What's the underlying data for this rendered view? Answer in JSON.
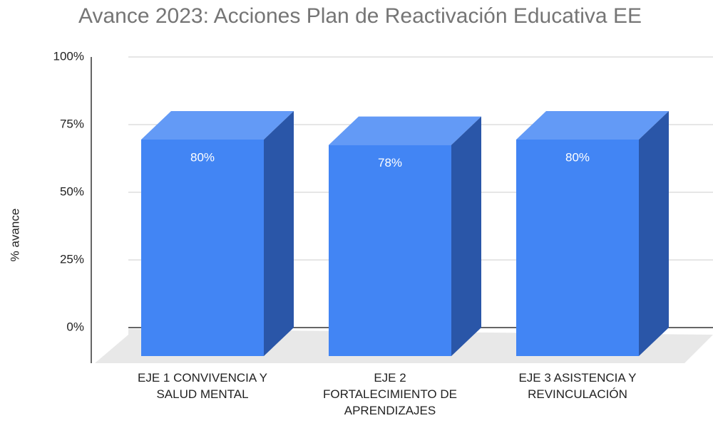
{
  "chart_data": {
    "type": "bar3d",
    "title": "Avance 2023: Acciones Plan de Reactivación Educativa EE",
    "y_label": "% avance",
    "categories": [
      "EJE 1 CONVIVENCIA Y\nSALUD MENTAL",
      "EJE 2\nFORTALECIMIENTO DE\nAPRENDIZAJES",
      "EJE 3 ASISTENCIA Y\nREVINCULACIÓN"
    ],
    "values": [
      80,
      78,
      80
    ],
    "value_labels": [
      "80%",
      "78%",
      "80%"
    ],
    "color": "#4285f4",
    "ylim": [
      0,
      100
    ],
    "yticks": [
      {
        "value": 0,
        "label": "0%"
      },
      {
        "value": 25,
        "label": "25%"
      },
      {
        "value": 50,
        "label": "50%"
      },
      {
        "value": 75,
        "label": "75%"
      },
      {
        "value": 100,
        "label": "100%"
      }
    ],
    "grid": true
  }
}
